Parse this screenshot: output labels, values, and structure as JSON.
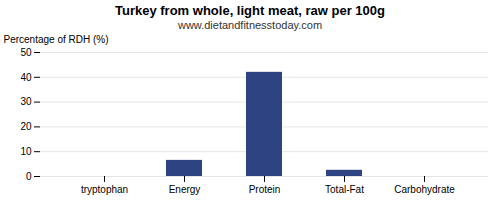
{
  "chart_data": {
    "type": "bar",
    "title": "Turkey from whole, light meat, raw per 100g",
    "subtitle": "www.dietandfitnesstoday.com",
    "categories": [
      "tryptophan",
      "Energy",
      "Protein",
      "Total-Fat",
      "Carbohydrate"
    ],
    "values": [
      0,
      6.5,
      42,
      2.5,
      0
    ],
    "color": "#2e4482",
    "ylabel": "Percentage of RDH (%)",
    "ylim": [
      0,
      50
    ],
    "yticks": [
      0,
      10,
      20,
      30,
      40,
      50
    ],
    "grid": true
  }
}
